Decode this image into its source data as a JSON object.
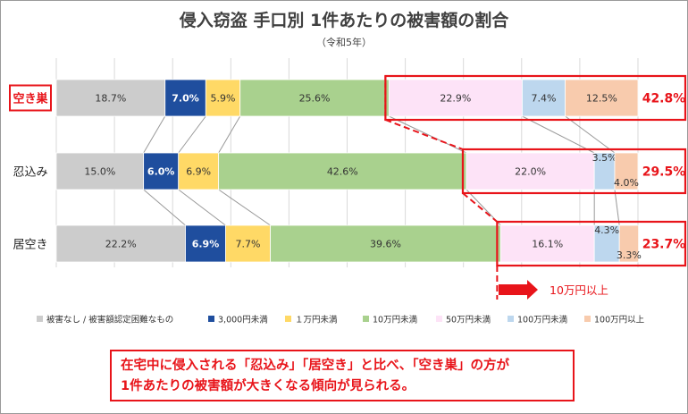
{
  "chart_data": {
    "type": "bar",
    "stacked": "100%",
    "orientation": "horizontal",
    "title": "侵入窃盗 手口別 1件あたりの被害額の割合",
    "subtitle": "（令和5年）",
    "categories": [
      "空き巣",
      "忍込み",
      "居空き"
    ],
    "series": [
      {
        "name": "被害なし / 被害額認定困難なもの",
        "color": "#cccccc",
        "values": [
          18.7,
          15.0,
          22.2
        ]
      },
      {
        "name": "3,000円未満",
        "color": "#1f4e9e",
        "values": [
          7.0,
          6.0,
          6.9
        ]
      },
      {
        "name": "１万円未満",
        "color": "#ffd966",
        "values": [
          5.9,
          6.9,
          7.7
        ]
      },
      {
        "name": "10万円未満",
        "color": "#a9d18e",
        "values": [
          25.6,
          42.6,
          39.6
        ]
      },
      {
        "name": "50万円未満",
        "color": "#fde3f7",
        "values": [
          22.9,
          22.0,
          16.1
        ]
      },
      {
        "name": "100万円未満",
        "color": "#bdd7ee",
        "values": [
          7.4,
          3.5,
          4.3
        ]
      },
      {
        "name": "100万円以上",
        "color": "#f8cbad",
        "values": [
          12.5,
          4.0,
          3.3
        ]
      }
    ],
    "over_100k_totals": [
      "42.8%",
      "29.5%",
      "23.7%"
    ],
    "arrow_label": "10万円以上",
    "highlight_color": "#e8141a",
    "xlim": [
      0,
      100
    ],
    "grid": true,
    "legend": "bottom"
  },
  "note": {
    "line1": "在宅中に侵入される「忍込み」「居空き」と比べ、「空き巣」の方が",
    "line2": "1件あたりの被害額が大きくなる傾向が見られる。"
  }
}
